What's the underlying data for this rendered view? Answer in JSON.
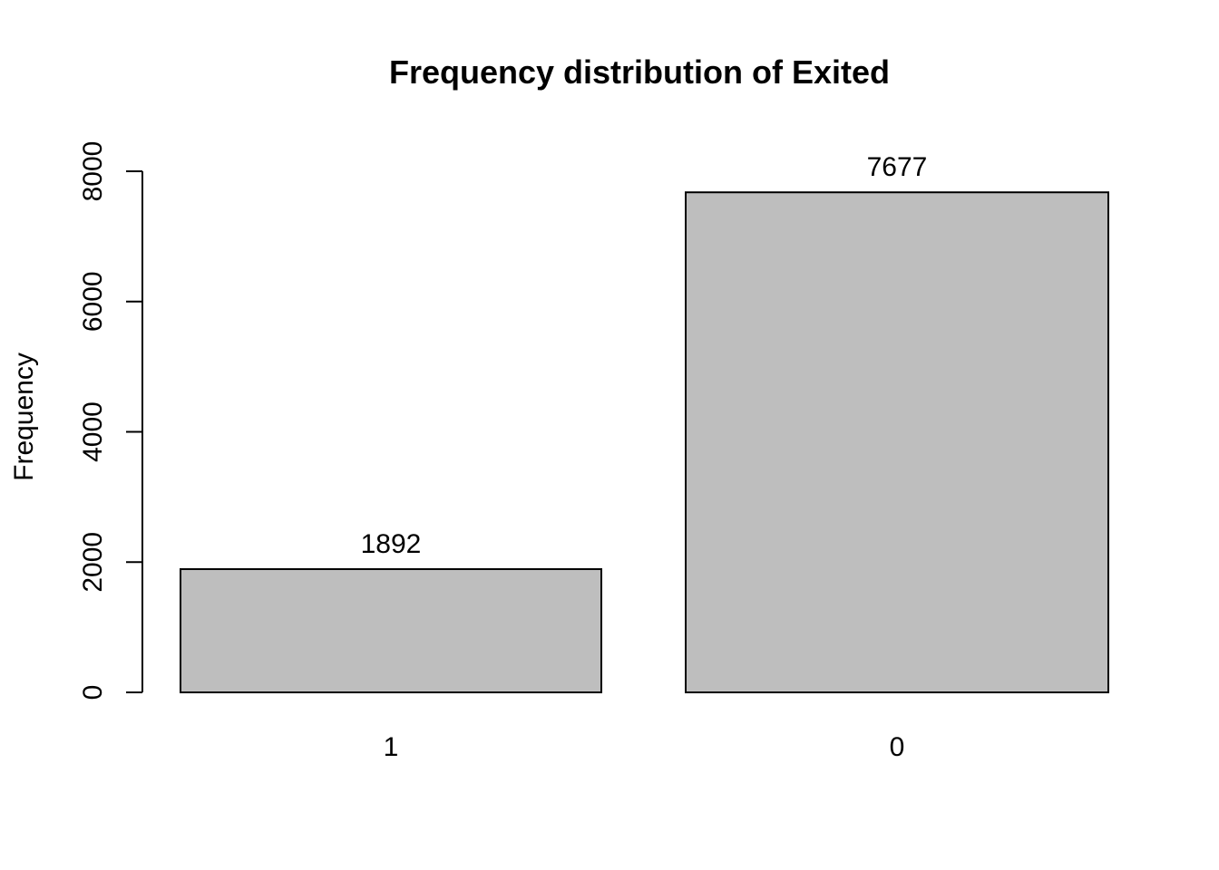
{
  "chart_data": {
    "type": "bar",
    "title": "Frequency distribution of Exited",
    "xlabel": "",
    "ylabel": "Frequency",
    "categories": [
      "1",
      "0"
    ],
    "values": [
      1892,
      7677
    ],
    "data_labels": [
      "1892",
      "7677"
    ],
    "ylim": [
      0,
      8000
    ],
    "y_ticks": [
      0,
      2000,
      4000,
      6000,
      8000
    ],
    "y_tick_labels": [
      "0",
      "2000",
      "4000",
      "6000",
      "8000"
    ],
    "grid": false,
    "legend": "none",
    "colors": {
      "bar_fill": "#bebebe",
      "bar_stroke": "#000000",
      "axis": "#000000",
      "background": "#ffffff"
    }
  }
}
